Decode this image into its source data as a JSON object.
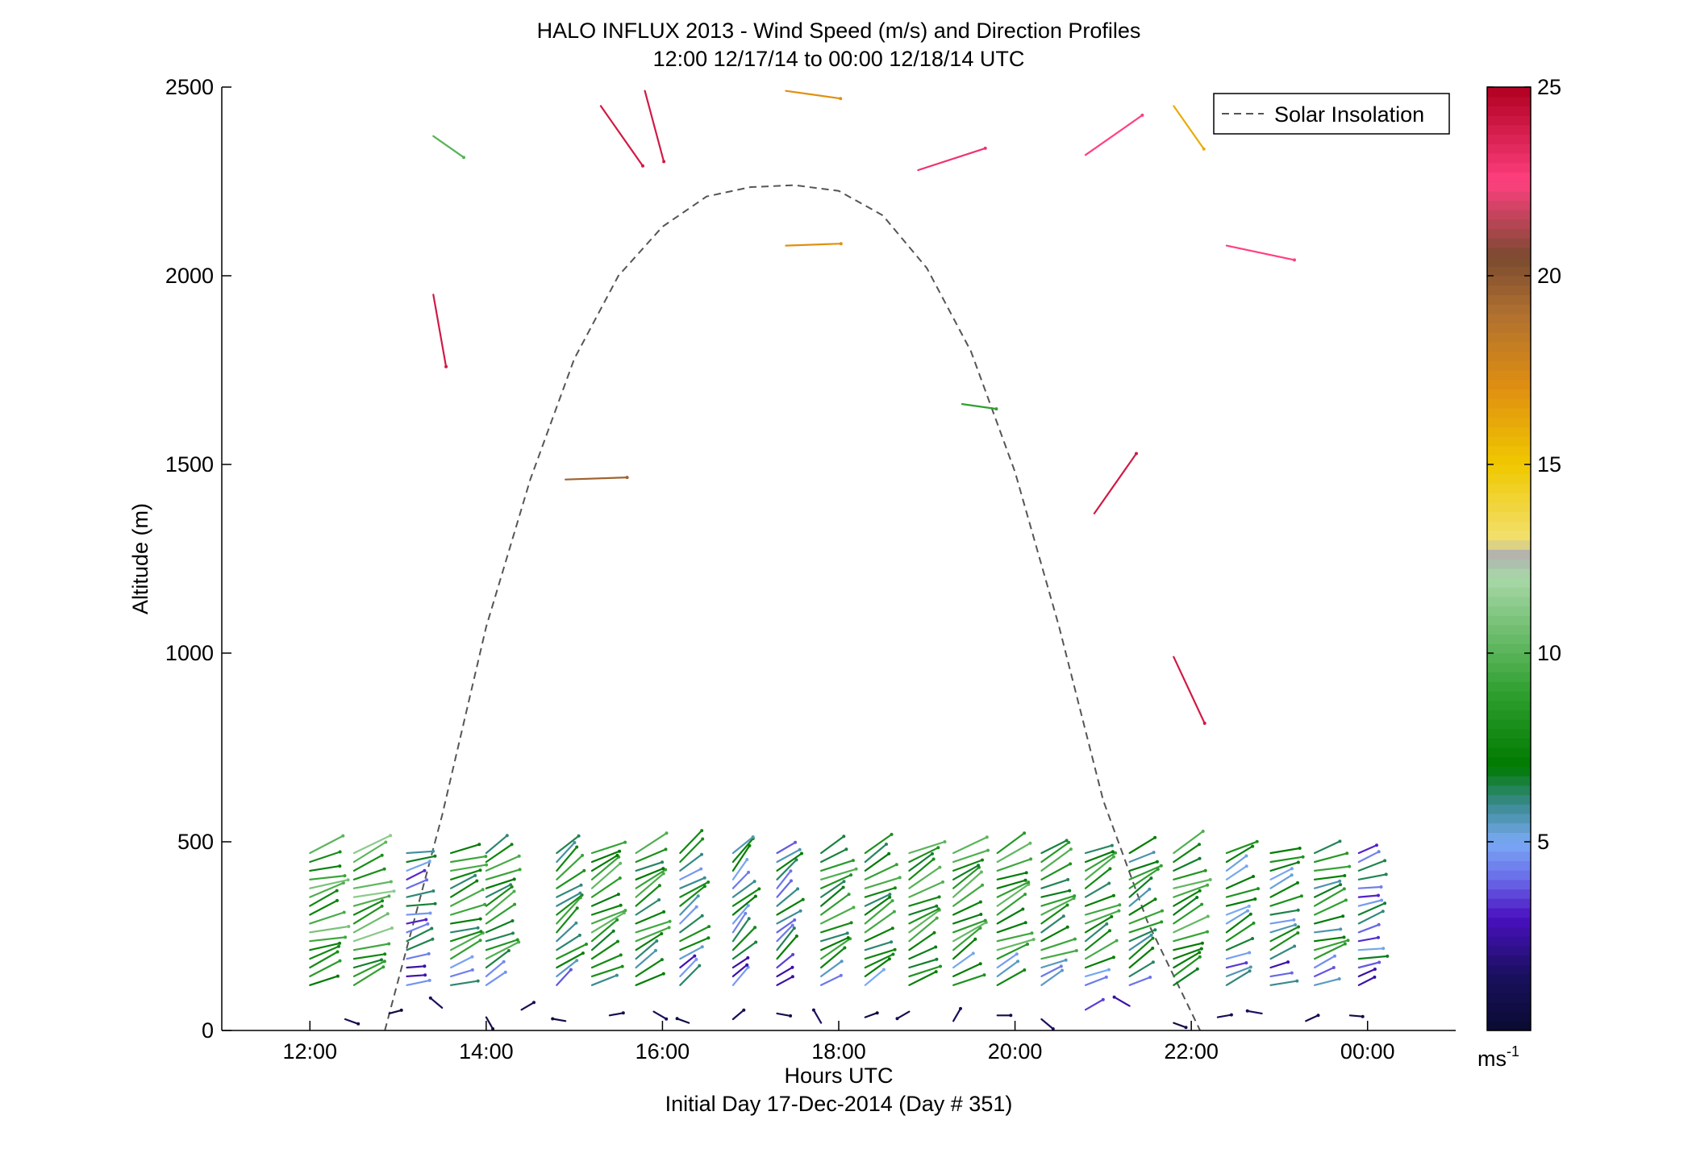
{
  "chart_data": {
    "type": "wind-barb-profile",
    "title": "HALO INFLUX 2013 - Wind Speed (m/s) and Direction Profiles",
    "subtitle": "12:00 12/17/14 to 00:00 12/18/14  UTC",
    "xlabel": "Hours UTC",
    "xlabel2": "Initial Day 17-Dec-2014 (Day # 351)",
    "ylabel": "Altitude (m)",
    "xlim": [
      11.0,
      25.0
    ],
    "ylim": [
      0,
      2500
    ],
    "x_ticks": [
      {
        "value": 12,
        "label": "12:00"
      },
      {
        "value": 14,
        "label": "14:00"
      },
      {
        "value": 16,
        "label": "16:00"
      },
      {
        "value": 18,
        "label": "18:00"
      },
      {
        "value": 20,
        "label": "20:00"
      },
      {
        "value": 22,
        "label": "22:00"
      },
      {
        "value": 24,
        "label": "00:00"
      }
    ],
    "y_ticks": [
      {
        "value": 0,
        "label": "0"
      },
      {
        "value": 500,
        "label": "500"
      },
      {
        "value": 1000,
        "label": "1000"
      },
      {
        "value": 1500,
        "label": "1500"
      },
      {
        "value": 2000,
        "label": "2000"
      },
      {
        "value": 2500,
        "label": "2500"
      }
    ],
    "legend": {
      "label": "Solar Insolation",
      "position": "top-right",
      "color": "#555555",
      "style": "dashed"
    },
    "colorbar": {
      "range": [
        0,
        25
      ],
      "units": "ms-1",
      "ticks": [
        {
          "value": 5,
          "label": "5"
        },
        {
          "value": 10,
          "label": "10"
        },
        {
          "value": 15,
          "label": "15"
        },
        {
          "value": 20,
          "label": "20"
        },
        {
          "value": 25,
          "label": "25"
        }
      ],
      "stops": [
        {
          "v": 0,
          "color": "#0a0a30"
        },
        {
          "v": 1.5,
          "color": "#1a1060"
        },
        {
          "v": 3,
          "color": "#4a10c0"
        },
        {
          "v": 4,
          "color": "#6a6ae8"
        },
        {
          "v": 5,
          "color": "#7aaaf5"
        },
        {
          "v": 6,
          "color": "#3a8a90"
        },
        {
          "v": 7,
          "color": "#007a00"
        },
        {
          "v": 9,
          "color": "#30a030"
        },
        {
          "v": 12,
          "color": "#a8d8a8"
        },
        {
          "v": 12.6,
          "color": "#b0b0b0"
        },
        {
          "v": 13,
          "color": "#f2e070"
        },
        {
          "v": 15,
          "color": "#f0c800"
        },
        {
          "v": 17,
          "color": "#e09010"
        },
        {
          "v": 19,
          "color": "#b07030"
        },
        {
          "v": 20.5,
          "color": "#7a4a30"
        },
        {
          "v": 22.5,
          "color": "#ff4080"
        },
        {
          "v": 25,
          "color": "#b00020"
        }
      ]
    },
    "solar_insolation": {
      "x": [
        12.85,
        13.5,
        14.0,
        14.5,
        15.0,
        15.5,
        16.0,
        16.5,
        17.0,
        17.5,
        18.0,
        18.5,
        19.0,
        19.5,
        20.0,
        20.5,
        21.0,
        21.5,
        22.1
      ],
      "y": [
        0,
        570,
        1070,
        1460,
        1780,
        2000,
        2130,
        2210,
        2235,
        2240,
        2225,
        2160,
        2020,
        1800,
        1480,
        1070,
        610,
        290,
        0
      ]
    },
    "profiles": {
      "times": [
        12.0,
        12.5,
        13.1,
        13.6,
        14.0,
        14.8,
        15.2,
        15.7,
        16.2,
        16.8,
        17.3,
        17.8,
        18.3,
        18.8,
        19.3,
        19.8,
        20.3,
        20.8,
        21.3,
        21.8,
        22.4,
        22.9,
        23.4,
        23.9
      ],
      "speeds": [
        9,
        9.5,
        5,
        8,
        8,
        7.5,
        8.5,
        8,
        6.5,
        6,
        5.5,
        8,
        8,
        8.5,
        8.5,
        8.5,
        8,
        8,
        7.5,
        8.5,
        6.5,
        6.5,
        7.5,
        5
      ],
      "angles": [
        18,
        20,
        15,
        20,
        28,
        38,
        30,
        30,
        35,
        45,
        40,
        28,
        28,
        28,
        30,
        25,
        25,
        28,
        30,
        25,
        25,
        20,
        18,
        15
      ],
      "alt_range": [
        120,
        470
      ]
    },
    "near_surface": {
      "times": [
        12.4,
        12.9,
        13.5,
        14.0,
        14.4,
        14.9,
        15.4,
        15.9,
        16.3,
        16.8,
        17.3,
        17.8,
        18.3,
        18.8,
        19.3,
        19.8,
        20.3,
        20.8,
        21.3,
        21.8,
        22.3,
        22.8,
        23.3,
        23.8
      ],
      "alts": [
        30,
        45,
        60,
        35,
        55,
        25,
        40,
        50,
        20,
        30,
        45,
        20,
        35,
        50,
        25,
        40,
        30,
        55,
        65,
        20,
        35,
        45,
        25,
        40
      ],
      "speeds": [
        1,
        0.5,
        1.5,
        0.8,
        1.2,
        0.7,
        1.0,
        1.3,
        0.5,
        1.1,
        0.9,
        1.4,
        0.6,
        1.0,
        1.2,
        0.8,
        1.5,
        3.5,
        2.5,
        0.7,
        1.0,
        1.3,
        0.9,
        0.6
      ],
      "angles": [
        -20,
        15,
        140,
        -60,
        30,
        170,
        10,
        -30,
        160,
        40,
        -10,
        120,
        20,
        -150,
        60,
        0,
        -40,
        30,
        150,
        -20,
        10,
        170,
        25,
        -5
      ]
    },
    "isolated_vectors": [
      {
        "x": 13.4,
        "y": 2370,
        "speed": 10,
        "angle": -35
      },
      {
        "x": 13.4,
        "y": 1950,
        "speed": 24,
        "angle": -80
      },
      {
        "x": 14.9,
        "y": 1460,
        "speed": 19.5,
        "angle": 2
      },
      {
        "x": 15.3,
        "y": 2450,
        "speed": 24,
        "angle": -55
      },
      {
        "x": 15.8,
        "y": 2490,
        "speed": 24,
        "angle": -75
      },
      {
        "x": 17.4,
        "y": 2490,
        "speed": 17,
        "angle": -8
      },
      {
        "x": 17.4,
        "y": 2080,
        "speed": 17,
        "angle": 2
      },
      {
        "x": 18.9,
        "y": 2280,
        "speed": 23,
        "angle": 18
      },
      {
        "x": 19.4,
        "y": 1660,
        "speed": 9,
        "angle": -8
      },
      {
        "x": 20.9,
        "y": 1370,
        "speed": 24,
        "angle": 55
      },
      {
        "x": 20.8,
        "y": 2320,
        "speed": 22.5,
        "angle": 35
      },
      {
        "x": 21.8,
        "y": 990,
        "speed": 24,
        "angle": -65
      },
      {
        "x": 21.8,
        "y": 2450,
        "speed": 16,
        "angle": -55
      },
      {
        "x": 22.4,
        "y": 2080,
        "speed": 22.5,
        "angle": -12
      }
    ]
  }
}
